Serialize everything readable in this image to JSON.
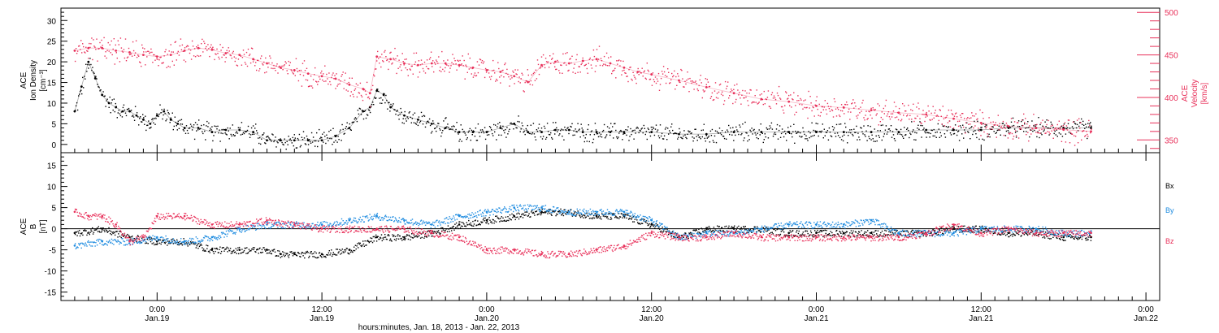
{
  "chart_data": [
    {
      "type": "scatter",
      "panel": "top",
      "ylabel_left": [
        "ACE",
        "Ion Density",
        "[cm⁻³]"
      ],
      "ylabel_right": [
        "ACE",
        "Velocity",
        "[km/s]"
      ],
      "ylim_left": [
        -2,
        33
      ],
      "ylim_right": [
        335,
        505
      ],
      "yticks_left": [
        "0",
        "5",
        "10",
        "15",
        "20",
        "25",
        "30"
      ],
      "yticks_right": [
        "350",
        "400",
        "450",
        "500"
      ],
      "colors": {
        "density": "#000000",
        "velocity": "#e8305a"
      },
      "series": [
        {
          "name": "Ion Density",
          "axis": "left",
          "color": "#000000",
          "x_hours": [
            -6,
            -5.5,
            -5,
            -4.5,
            -4,
            -3.5,
            -3,
            -2.5,
            -2,
            -1.5,
            -1,
            -0.5,
            0,
            0.5,
            1,
            1.5,
            2,
            3,
            4,
            5,
            6,
            7,
            8,
            9,
            10,
            11,
            12,
            13,
            14,
            15,
            15.5,
            16,
            16.5,
            17,
            18,
            19,
            20,
            21,
            22,
            23,
            24,
            25,
            26,
            27,
            28,
            29,
            30,
            31,
            32,
            33,
            34,
            36,
            38,
            40,
            42,
            44,
            46,
            48,
            50,
            52,
            54,
            56,
            58,
            60,
            62,
            64,
            66,
            68
          ],
          "values": [
            8,
            14,
            20,
            16,
            12,
            10,
            9,
            8,
            8,
            7,
            6,
            5,
            7,
            8,
            6,
            5,
            4,
            4,
            3,
            3.5,
            3.5,
            3,
            1,
            1,
            1,
            1,
            1,
            2,
            4,
            8,
            9,
            13,
            12,
            9,
            7,
            6,
            5,
            4,
            3,
            3,
            3,
            4,
            5,
            3,
            3,
            3.5,
            3.5,
            3,
            3,
            3,
            3,
            3,
            2.5,
            2.5,
            3,
            3,
            3,
            3,
            3,
            3,
            3,
            3.5,
            3.5,
            3.5,
            4,
            4,
            4,
            4
          ]
        },
        {
          "name": "Velocity",
          "axis": "right",
          "color": "#e8305a",
          "x_hours": [
            -6,
            -5,
            -4,
            -3,
            -2,
            -1,
            0,
            1,
            2,
            3,
            4,
            5,
            6,
            7,
            8,
            9,
            10,
            11,
            12,
            13,
            14,
            15,
            15.5,
            16,
            17,
            18,
            19,
            20,
            21,
            22,
            23,
            24,
            25,
            26,
            27,
            28,
            29,
            30,
            31,
            32,
            33,
            34,
            35,
            36,
            38,
            40,
            42,
            44,
            46,
            48,
            50,
            52,
            54,
            56,
            58,
            60,
            62,
            64,
            66,
            68
          ],
          "values": [
            455,
            458,
            458,
            455,
            453,
            450,
            448,
            450,
            455,
            458,
            456,
            452,
            450,
            445,
            440,
            435,
            432,
            428,
            425,
            422,
            415,
            410,
            405,
            448,
            445,
            440,
            438,
            440,
            440,
            438,
            435,
            432,
            430,
            425,
            418,
            438,
            442,
            440,
            443,
            445,
            440,
            435,
            430,
            427,
            420,
            412,
            405,
            398,
            395,
            390,
            388,
            385,
            382,
            380,
            375,
            370,
            366,
            364,
            362,
            360
          ]
        }
      ]
    },
    {
      "type": "scatter",
      "panel": "bottom",
      "ylabel_left": [
        "ACE",
        "B",
        "[nT]"
      ],
      "ylim": [
        -17,
        18
      ],
      "yticks_left": [
        "-15",
        "-10",
        "-5",
        "0",
        "5",
        "10",
        "15"
      ],
      "legend": [
        "Bx",
        "By",
        "Bz"
      ],
      "legend_placement": "right",
      "series": [
        {
          "name": "Bx",
          "color": "#000000",
          "x_hours": [
            -6,
            -4,
            -2,
            0,
            2,
            4,
            6,
            8,
            9,
            10,
            12,
            14,
            16,
            18,
            20,
            22,
            24,
            26,
            28,
            30,
            32,
            34,
            36,
            38,
            40,
            42,
            44,
            46,
            48,
            50,
            52,
            54,
            56,
            58,
            60,
            62,
            64,
            66,
            68
          ],
          "values": [
            -1,
            0,
            -2,
            -3,
            -3,
            -5,
            -5,
            -5,
            -6,
            -6,
            -6,
            -5,
            -2,
            -2,
            -1,
            1,
            2,
            3,
            4,
            4,
            3,
            3,
            1,
            -2,
            0,
            0,
            0,
            -1,
            -1,
            -1,
            -1,
            -1,
            -1,
            0,
            0,
            -1,
            -1,
            -2,
            -2
          ]
        },
        {
          "name": "By",
          "color": "#1f8ce0",
          "x_hours": [
            -6,
            -4,
            -2,
            0,
            2,
            4,
            6,
            8,
            10,
            12,
            14,
            16,
            18,
            20,
            22,
            24,
            26,
            28,
            30,
            32,
            34,
            36,
            38,
            40,
            42,
            44,
            46,
            48,
            50,
            52,
            54,
            56,
            58,
            60,
            62,
            64,
            66,
            68
          ],
          "values": [
            -4,
            -3,
            -3,
            -2,
            -3,
            -2,
            0,
            1,
            1,
            1,
            2,
            3,
            2,
            1,
            3,
            4,
            5,
            5,
            4,
            4,
            4,
            2,
            -2,
            -1,
            -1,
            0,
            1,
            1,
            1,
            2,
            -1,
            -1,
            -1,
            0,
            0,
            0,
            -1,
            -1
          ]
        },
        {
          "name": "Bz",
          "color": "#e8305a",
          "x_hours": [
            -6,
            -5,
            -4,
            -3,
            -2,
            -1,
            0,
            2,
            4,
            6,
            8,
            10,
            12,
            14,
            16,
            18,
            20,
            22,
            24,
            26,
            28,
            30,
            32,
            34,
            36,
            38,
            40,
            42,
            44,
            46,
            48,
            50,
            52,
            54,
            56,
            58,
            60,
            62,
            64,
            66,
            68
          ],
          "values": [
            4,
            3,
            3,
            1,
            -3,
            -2,
            3,
            3,
            1,
            1,
            2,
            1,
            0,
            0,
            0,
            0,
            -1,
            -2,
            -5,
            -5,
            -6,
            -6,
            -5,
            -4,
            -1,
            -2,
            -2,
            -1,
            -2,
            -2,
            -2,
            -2,
            -2,
            -2,
            -1,
            1,
            -1,
            0,
            -1,
            -1,
            -1
          ]
        }
      ]
    }
  ],
  "x_axis": {
    "range_hours": [
      -7,
      73
    ],
    "ticks": [
      {
        "time": "0:00",
        "day": "Jan.19",
        "hours": 0
      },
      {
        "time": "12:00",
        "day": "Jan.19",
        "hours": 12
      },
      {
        "time": "0:00",
        "day": "Jan.20",
        "hours": 24
      },
      {
        "time": "12:00",
        "day": "Jan.20",
        "hours": 36
      },
      {
        "time": "0:00",
        "day": "Jan.21",
        "hours": 48
      },
      {
        "time": "12:00",
        "day": "Jan.21",
        "hours": 60
      },
      {
        "time": "0:00",
        "day": "Jan.22",
        "hours": 72
      }
    ],
    "xlabel": "hours:minutes, Jan. 18, 2013 - Jan. 22, 2013"
  }
}
